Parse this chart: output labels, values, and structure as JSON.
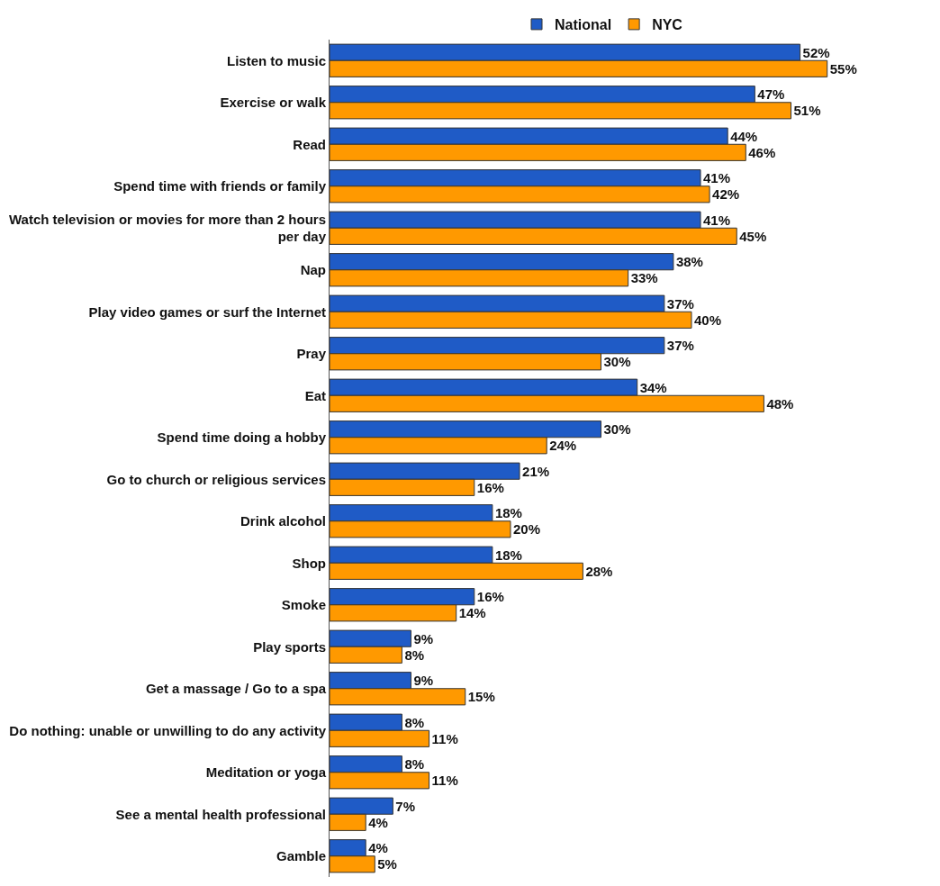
{
  "chart_data": {
    "type": "bar",
    "orientation": "horizontal",
    "legend": "top",
    "categories": [
      "Listen to music",
      "Exercise or walk",
      "Read",
      "Spend time with friends or family",
      "Watch television or movies for more than 2 hours per day",
      "Nap",
      "Play video games or surf the Internet",
      "Pray",
      "Eat",
      "Spend time doing a hobby",
      "Go to church or religious services",
      "Drink alcohol",
      "Shop",
      "Smoke",
      "Play sports",
      "Get a massage / Go to a spa",
      "Do nothing: unable or unwilling to do any activity",
      "Meditation or yoga",
      "See a mental health professional",
      "Gamble"
    ],
    "series": [
      {
        "name": "National",
        "color": "#1f5bc6",
        "values": [
          52,
          47,
          44,
          41,
          41,
          38,
          37,
          37,
          34,
          30,
          21,
          18,
          18,
          16,
          9,
          9,
          8,
          8,
          7,
          4
        ],
        "value_labels": [
          "52%",
          "47%",
          "44%",
          "41%",
          "41%",
          "38%",
          "37%",
          "37%",
          "34%",
          "30%",
          "21%",
          "18%",
          "18%",
          "16%",
          "9%",
          "9%",
          "8%",
          "8%",
          "7%",
          "4%"
        ]
      },
      {
        "name": "NYC",
        "color": "#ff9900",
        "values": [
          55,
          51,
          46,
          42,
          45,
          33,
          40,
          30,
          48,
          24,
          16,
          20,
          28,
          14,
          8,
          15,
          11,
          11,
          4,
          5
        ],
        "value_labels": [
          "55%",
          "51%",
          "46%",
          "42%",
          "45%",
          "33%",
          "40%",
          "30%",
          "48%",
          "24%",
          "16%",
          "20%",
          "28%",
          "14%",
          "8%",
          "15%",
          "11%",
          "11%",
          "4%",
          "5%"
        ]
      }
    ]
  }
}
